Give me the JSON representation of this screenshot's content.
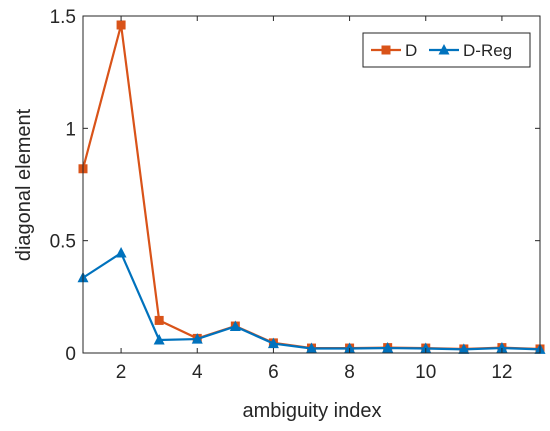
{
  "chart_data": {
    "type": "line",
    "xlabel": "ambiguity index",
    "ylabel": "diagonal element",
    "xlim": [
      1,
      13
    ],
    "ylim": [
      0,
      1.5
    ],
    "x_ticks": [
      2,
      4,
      6,
      8,
      10,
      12
    ],
    "y_ticks": [
      0,
      0.5,
      1,
      1.5
    ],
    "x_tick_labels": [
      "2",
      "4",
      "6",
      "8",
      "10",
      "12"
    ],
    "y_tick_labels": [
      "0",
      "0.5",
      "1",
      "1.5"
    ],
    "grid": false,
    "legend_position": "top-right",
    "x": [
      1,
      2,
      3,
      4,
      5,
      6,
      7,
      8,
      9,
      10,
      11,
      12,
      13
    ],
    "series": [
      {
        "name": "D",
        "color": "#D95319",
        "marker": "square",
        "values": [
          0.82,
          1.46,
          0.145,
          0.065,
          0.12,
          0.045,
          0.022,
          0.022,
          0.024,
          0.022,
          0.018,
          0.024,
          0.018
        ]
      },
      {
        "name": "D-Reg",
        "color": "#0072BD",
        "marker": "triangle",
        "values": [
          0.335,
          0.445,
          0.058,
          0.062,
          0.118,
          0.042,
          0.02,
          0.02,
          0.022,
          0.02,
          0.016,
          0.022,
          0.016
        ]
      }
    ]
  }
}
